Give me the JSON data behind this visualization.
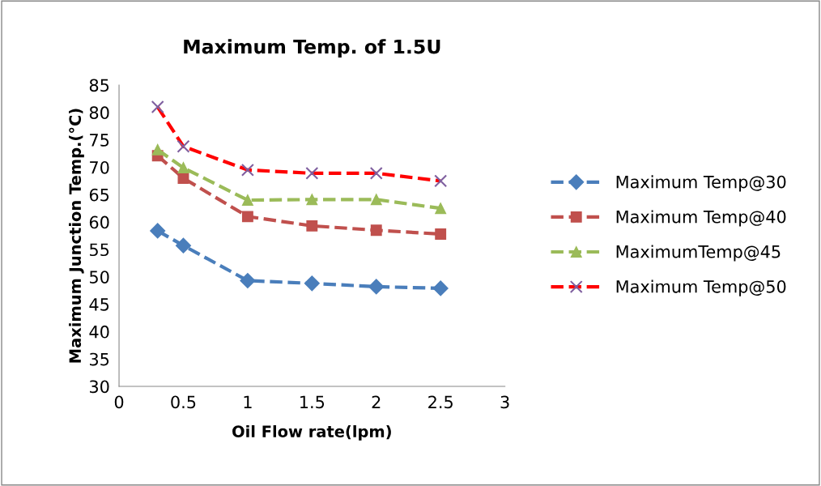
{
  "chart_data": {
    "type": "line",
    "title": "Maximum Temp. of 1.5U",
    "xlabel": "Oil Flow rate(lpm)",
    "ylabel": "Maximum Junction Temp.(°C)",
    "x": [
      0.3,
      0.5,
      1,
      1.5,
      2,
      2.5
    ],
    "series": [
      {
        "name": "Maximum Temp@30",
        "color": "#4a7ebb",
        "marker": "diamond",
        "values": [
          58.4,
          55.7,
          49.3,
          48.8,
          48.2,
          47.9
        ]
      },
      {
        "name": "Maximum Temp@40",
        "color": "#c0504d",
        "marker": "square",
        "values": [
          72.1,
          68,
          61,
          59.3,
          58.5,
          57.8
        ]
      },
      {
        "name": "MaximumTemp@45",
        "color": "#9bbb59",
        "marker": "triangle",
        "values": [
          73.2,
          69.9,
          64,
          64.1,
          64.1,
          62.5
        ]
      },
      {
        "name": "Maximum Temp@50",
        "color": "#ff0000",
        "marker": "cross",
        "values": [
          81,
          73.8,
          69.5,
          68.9,
          68.9,
          67.5
        ]
      }
    ],
    "xlim": [
      0,
      3
    ],
    "xticks": [
      0,
      0.5,
      1,
      1.5,
      2,
      2.5,
      3
    ],
    "ylim": [
      30,
      85
    ],
    "yticks": [
      30,
      35,
      40,
      45,
      50,
      55,
      60,
      65,
      70,
      75,
      80,
      85
    ],
    "grid": false,
    "legend": "right",
    "line_style": "dashed"
  }
}
